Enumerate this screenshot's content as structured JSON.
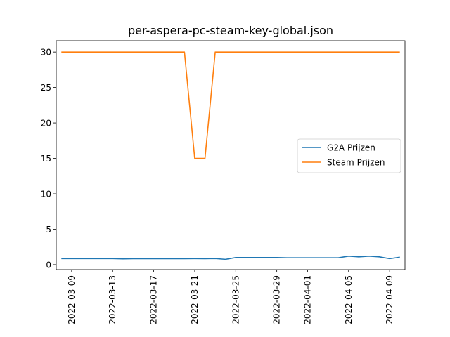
{
  "chart_data": {
    "type": "line",
    "title": "per-aspera-pc-steam-key-global.json",
    "xlabel": "",
    "ylabel": "",
    "x_dates": [
      "2022-03-08",
      "2022-03-09",
      "2022-03-10",
      "2022-03-11",
      "2022-03-12",
      "2022-03-13",
      "2022-03-14",
      "2022-03-15",
      "2022-03-16",
      "2022-03-17",
      "2022-03-18",
      "2022-03-19",
      "2022-03-20",
      "2022-03-21",
      "2022-03-22",
      "2022-03-23",
      "2022-03-24",
      "2022-03-25",
      "2022-03-26",
      "2022-03-27",
      "2022-03-28",
      "2022-03-29",
      "2022-03-30",
      "2022-03-31",
      "2022-04-01",
      "2022-04-02",
      "2022-04-03",
      "2022-04-04",
      "2022-04-05",
      "2022-04-06",
      "2022-04-07",
      "2022-04-08",
      "2022-04-09",
      "2022-04-10"
    ],
    "x_ticks": [
      "2022-03-09",
      "2022-03-13",
      "2022-03-17",
      "2022-03-21",
      "2022-03-25",
      "2022-03-29",
      "2022-04-01",
      "2022-04-05",
      "2022-04-09"
    ],
    "y_ticks": [
      0,
      5,
      10,
      15,
      20,
      25,
      30
    ],
    "xlim": [
      "2022-03-07T12:00",
      "2022-04-10T12:00"
    ],
    "ylim": [
      -0.7,
      31.6
    ],
    "legend_position": "center-right",
    "series": [
      {
        "name": "G2A Prijzen",
        "color": "#1f77b4",
        "values": [
          0.85,
          0.85,
          0.85,
          0.85,
          0.85,
          0.85,
          0.82,
          0.84,
          0.84,
          0.84,
          0.84,
          0.84,
          0.84,
          0.85,
          0.84,
          0.86,
          0.75,
          1.0,
          1.0,
          1.0,
          1.0,
          1.0,
          0.97,
          0.97,
          0.97,
          0.97,
          0.97,
          0.97,
          1.2,
          1.1,
          1.2,
          1.1,
          0.85,
          1.05
        ]
      },
      {
        "name": "Steam Prijzen",
        "color": "#ff7f0e",
        "values": [
          30,
          30,
          30,
          30,
          30,
          30,
          30,
          30,
          30,
          30,
          30,
          30,
          30,
          15,
          15,
          30,
          30,
          30,
          30,
          30,
          30,
          30,
          30,
          30,
          30,
          30,
          30,
          30,
          30,
          30,
          30,
          30,
          30,
          30
        ]
      }
    ]
  }
}
